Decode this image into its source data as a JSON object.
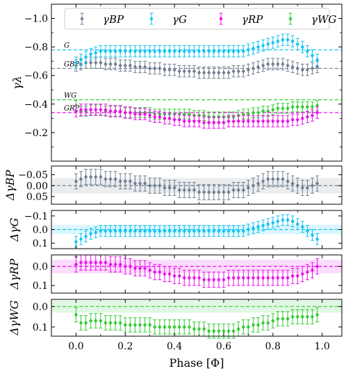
{
  "xlabel": "Phase [Φ]",
  "colors": {
    "bp": "#708090",
    "g": "#12c4f2",
    "rp": "#ee11ee",
    "wg": "#33cc33"
  },
  "chart_data": [
    {
      "type": "scatter",
      "panel": "main",
      "ylabel": "γλ",
      "ylim": [
        -1.1,
        0.0
      ],
      "y_inverted": true,
      "xlim": [
        -0.1,
        1.08
      ],
      "yticks": [
        "−1.0",
        "−0.8",
        "−0.6",
        "−0.4",
        "−0.2"
      ],
      "xticks": [
        "0.0",
        "0.2",
        "0.4",
        "0.6",
        "0.8",
        "1.0"
      ],
      "legend": {
        "placement": "top",
        "entries": [
          "γBP",
          "γG",
          "γRP",
          "γWG"
        ]
      },
      "reference_lines": [
        {
          "label": "G",
          "value": -0.78,
          "color": "#12c4f2"
        },
        {
          "label": "GBP",
          "value": -0.65,
          "color": "#708090"
        },
        {
          "label": "WG",
          "value": -0.43,
          "color": "#33cc33"
        },
        {
          "label": "GRP",
          "value": -0.34,
          "color": "#ee11ee"
        }
      ],
      "x": [
        0.0,
        0.02,
        0.04,
        0.06,
        0.08,
        0.1,
        0.12,
        0.14,
        0.16,
        0.18,
        0.2,
        0.22,
        0.24,
        0.26,
        0.28,
        0.3,
        0.32,
        0.34,
        0.36,
        0.38,
        0.4,
        0.42,
        0.44,
        0.46,
        0.48,
        0.5,
        0.52,
        0.54,
        0.56,
        0.58,
        0.6,
        0.62,
        0.64,
        0.66,
        0.68,
        0.7,
        0.72,
        0.74,
        0.76,
        0.78,
        0.8,
        0.82,
        0.84,
        0.86,
        0.88,
        0.9,
        0.92,
        0.94,
        0.96,
        0.98
      ],
      "series": [
        {
          "name": "γBP",
          "key": "bp",
          "error": 0.04,
          "values": [
            -0.67,
            -0.68,
            -0.69,
            -0.69,
            -0.69,
            -0.69,
            -0.68,
            -0.68,
            -0.68,
            -0.67,
            -0.67,
            -0.67,
            -0.66,
            -0.66,
            -0.66,
            -0.65,
            -0.65,
            -0.65,
            -0.64,
            -0.64,
            -0.64,
            -0.63,
            -0.63,
            -0.63,
            -0.63,
            -0.62,
            -0.62,
            -0.62,
            -0.62,
            -0.62,
            -0.62,
            -0.62,
            -0.63,
            -0.63,
            -0.63,
            -0.64,
            -0.65,
            -0.66,
            -0.67,
            -0.68,
            -0.68,
            -0.68,
            -0.68,
            -0.67,
            -0.66,
            -0.65,
            -0.64,
            -0.64,
            -0.65,
            -0.66
          ]
        },
        {
          "name": "γG",
          "key": "g",
          "error": 0.04,
          "values": [
            -0.69,
            -0.71,
            -0.73,
            -0.75,
            -0.76,
            -0.77,
            -0.77,
            -0.77,
            -0.77,
            -0.77,
            -0.77,
            -0.77,
            -0.77,
            -0.77,
            -0.77,
            -0.77,
            -0.77,
            -0.77,
            -0.77,
            -0.77,
            -0.77,
            -0.77,
            -0.77,
            -0.77,
            -0.77,
            -0.77,
            -0.77,
            -0.77,
            -0.77,
            -0.77,
            -0.77,
            -0.77,
            -0.77,
            -0.77,
            -0.77,
            -0.78,
            -0.79,
            -0.8,
            -0.81,
            -0.82,
            -0.83,
            -0.84,
            -0.85,
            -0.85,
            -0.84,
            -0.82,
            -0.8,
            -0.77,
            -0.74,
            -0.71
          ]
        },
        {
          "name": "γRP",
          "key": "rp",
          "error": 0.04,
          "values": [
            -0.35,
            -0.36,
            -0.36,
            -0.36,
            -0.36,
            -0.36,
            -0.36,
            -0.35,
            -0.35,
            -0.35,
            -0.34,
            -0.34,
            -0.33,
            -0.33,
            -0.33,
            -0.32,
            -0.31,
            -0.31,
            -0.3,
            -0.3,
            -0.29,
            -0.29,
            -0.28,
            -0.28,
            -0.28,
            -0.28,
            -0.27,
            -0.27,
            -0.27,
            -0.27,
            -0.27,
            -0.28,
            -0.28,
            -0.28,
            -0.28,
            -0.28,
            -0.28,
            -0.28,
            -0.28,
            -0.28,
            -0.28,
            -0.28,
            -0.28,
            -0.28,
            -0.29,
            -0.29,
            -0.3,
            -0.31,
            -0.32,
            -0.34
          ]
        },
        {
          "name": "γWG",
          "key": "wg",
          "error": 0.035,
          "values": [
            -0.39,
            -0.35,
            -0.35,
            -0.36,
            -0.36,
            -0.36,
            -0.35,
            -0.35,
            -0.35,
            -0.35,
            -0.34,
            -0.34,
            -0.34,
            -0.34,
            -0.34,
            -0.34,
            -0.33,
            -0.33,
            -0.33,
            -0.33,
            -0.33,
            -0.33,
            -0.33,
            -0.33,
            -0.32,
            -0.32,
            -0.32,
            -0.31,
            -0.31,
            -0.31,
            -0.31,
            -0.31,
            -0.31,
            -0.32,
            -0.33,
            -0.33,
            -0.34,
            -0.34,
            -0.35,
            -0.35,
            -0.36,
            -0.37,
            -0.37,
            -0.37,
            -0.38,
            -0.38,
            -0.38,
            -0.38,
            -0.38,
            -0.39
          ]
        }
      ]
    },
    {
      "type": "scatter",
      "panel": "residual",
      "key": "bp",
      "ylabel": "ΔγBP",
      "ylim": [
        -0.09,
        0.085
      ],
      "y_inverted": true,
      "band": 0.035,
      "yticks": [
        {
          "v": -0.05,
          "t": "−0.05"
        },
        {
          "v": 0.0,
          "t": "0.00"
        },
        {
          "v": 0.05,
          "t": "0.05"
        }
      ],
      "xticks": [],
      "error": 0.035,
      "values": [
        -0.02,
        -0.03,
        -0.04,
        -0.04,
        -0.04,
        -0.04,
        -0.03,
        -0.03,
        -0.03,
        -0.02,
        -0.02,
        -0.02,
        -0.01,
        -0.01,
        -0.01,
        0.0,
        0.0,
        0.0,
        0.01,
        0.01,
        0.01,
        0.02,
        0.02,
        0.02,
        0.02,
        0.03,
        0.03,
        0.03,
        0.03,
        0.03,
        0.03,
        0.03,
        0.02,
        0.02,
        0.02,
        0.01,
        0.0,
        -0.01,
        -0.02,
        -0.03,
        -0.03,
        -0.03,
        -0.03,
        -0.02,
        -0.01,
        0.0,
        0.01,
        0.01,
        0.0,
        -0.01
      ]
    },
    {
      "type": "scatter",
      "panel": "residual",
      "key": "g",
      "ylabel": "ΔγG",
      "ylim": [
        -0.14,
        0.14
      ],
      "y_inverted": true,
      "band": 0.035,
      "yticks": [
        {
          "v": -0.1,
          "t": "−0.1"
        },
        {
          "v": 0.0,
          "t": "0.0"
        },
        {
          "v": 0.1,
          "t": "0.1"
        }
      ],
      "xticks": [],
      "error": 0.04,
      "values": [
        0.09,
        0.07,
        0.05,
        0.03,
        0.02,
        0.01,
        0.01,
        0.01,
        0.01,
        0.01,
        0.01,
        0.01,
        0.01,
        0.01,
        0.01,
        0.01,
        0.01,
        0.01,
        0.01,
        0.01,
        0.01,
        0.01,
        0.01,
        0.01,
        0.01,
        0.01,
        0.01,
        0.01,
        0.01,
        0.01,
        0.01,
        0.01,
        0.01,
        0.01,
        0.01,
        0.0,
        -0.01,
        -0.02,
        -0.03,
        -0.04,
        -0.05,
        -0.06,
        -0.07,
        -0.07,
        -0.06,
        -0.04,
        -0.02,
        0.01,
        0.04,
        0.07
      ]
    },
    {
      "type": "scatter",
      "panel": "residual",
      "key": "rp",
      "ylabel": "ΔγRP",
      "ylim": [
        -0.06,
        0.14
      ],
      "y_inverted": true,
      "band": 0.035,
      "yticks": [
        {
          "v": 0.0,
          "t": "0.0"
        },
        {
          "v": 0.1,
          "t": "0.1"
        }
      ],
      "xticks": [],
      "error": 0.04,
      "values": [
        -0.01,
        -0.02,
        -0.02,
        -0.02,
        -0.02,
        -0.02,
        -0.02,
        -0.01,
        -0.01,
        -0.01,
        0.0,
        0.0,
        0.01,
        0.01,
        0.01,
        0.02,
        0.03,
        0.03,
        0.04,
        0.04,
        0.05,
        0.05,
        0.06,
        0.06,
        0.06,
        0.06,
        0.07,
        0.07,
        0.07,
        0.07,
        0.07,
        0.06,
        0.06,
        0.06,
        0.06,
        0.06,
        0.06,
        0.06,
        0.06,
        0.06,
        0.06,
        0.06,
        0.06,
        0.06,
        0.05,
        0.05,
        0.04,
        0.03,
        0.02,
        0.0
      ]
    },
    {
      "type": "scatter",
      "panel": "residual",
      "key": "wg",
      "ylabel": "ΔγWG",
      "ylim": [
        -0.035,
        0.145
      ],
      "y_inverted": true,
      "band": 0.03,
      "yticks": [
        {
          "v": 0.0,
          "t": "0.0"
        },
        {
          "v": 0.1,
          "t": "0.1"
        }
      ],
      "xticks": [
        "0.0",
        "0.2",
        "0.4",
        "0.6",
        "0.8",
        "1.0"
      ],
      "error": 0.035,
      "values": [
        0.04,
        0.08,
        0.08,
        0.07,
        0.07,
        0.07,
        0.08,
        0.08,
        0.08,
        0.08,
        0.09,
        0.09,
        0.09,
        0.09,
        0.09,
        0.09,
        0.1,
        0.1,
        0.1,
        0.1,
        0.1,
        0.1,
        0.1,
        0.1,
        0.11,
        0.11,
        0.11,
        0.12,
        0.12,
        0.12,
        0.12,
        0.12,
        0.12,
        0.11,
        0.1,
        0.1,
        0.09,
        0.09,
        0.08,
        0.08,
        0.07,
        0.06,
        0.06,
        0.06,
        0.05,
        0.05,
        0.05,
        0.05,
        0.05,
        0.04
      ]
    }
  ]
}
